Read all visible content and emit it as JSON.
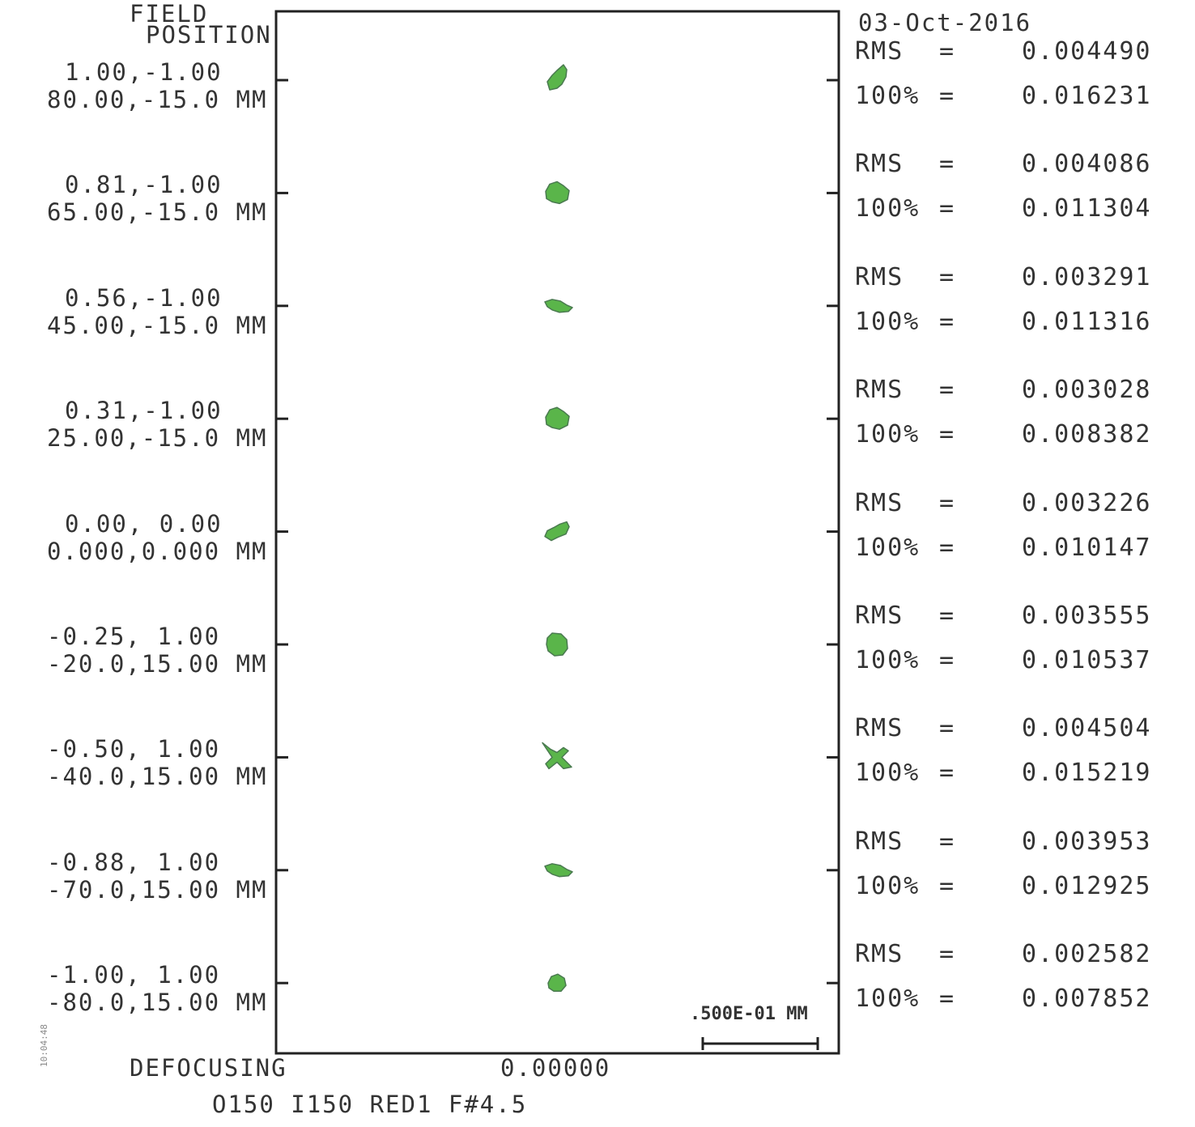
{
  "header": {
    "field_line1": "FIELD",
    "field_line2": "POSITION",
    "date": "03-Oct-2016"
  },
  "footer": {
    "defocusing_label": "DEFOCUSING",
    "defocus_value": "0.00000",
    "subtitle": "O150 I150 RED1 F#4.5",
    "side_mark": "10:04:48"
  },
  "scale_bar": {
    "label": ".500E-01 MM"
  },
  "chart_data": {
    "type": "scatter",
    "title": "",
    "xlabel": "DEFOCUSING",
    "ylabel": "FIELD POSITION",
    "spot_color": "#5ab54a",
    "spot_outline": "#4a7a50",
    "fields": [
      {
        "norm": "1.00,-1.00",
        "pos": "80.00,-15.0 MM",
        "rms_label": "RMS",
        "rms": "0.004490",
        "geo_label": "100%",
        "geo": "0.016231",
        "shape": "elongated"
      },
      {
        "norm": "0.81,-1.00",
        "pos": "65.00,-15.0 MM",
        "rms_label": "RMS",
        "rms": "0.004086",
        "geo_label": "100%",
        "geo": "0.011304",
        "shape": "blob"
      },
      {
        "norm": "0.56,-1.00",
        "pos": "45.00,-15.0 MM",
        "rms_label": "RMS",
        "rms": "0.003291",
        "geo_label": "100%",
        "geo": "0.011316",
        "shape": "flat"
      },
      {
        "norm": "0.31,-1.00",
        "pos": "25.00,-15.0 MM",
        "rms_label": "RMS",
        "rms": "0.003028",
        "geo_label": "100%",
        "geo": "0.008382",
        "shape": "blob"
      },
      {
        "norm": "0.00, 0.00",
        "pos": "0.000,0.000 MM",
        "rms_label": "RMS",
        "rms": "0.003226",
        "geo_label": "100%",
        "geo": "0.010147",
        "shape": "diag"
      },
      {
        "norm": "-0.25, 1.00",
        "pos": "-20.0,15.00 MM",
        "rms_label": "RMS",
        "rms": "0.003555",
        "geo_label": "100%",
        "geo": "0.010537",
        "shape": "tall"
      },
      {
        "norm": "-0.50, 1.00",
        "pos": "-40.0,15.00 MM",
        "rms_label": "RMS",
        "rms": "0.004504",
        "geo_label": "100%",
        "geo": "0.015219",
        "shape": "x"
      },
      {
        "norm": "-0.88, 1.00",
        "pos": "-70.0,15.00 MM",
        "rms_label": "RMS",
        "rms": "0.003953",
        "geo_label": "100%",
        "geo": "0.012925",
        "shape": "flat"
      },
      {
        "norm": "-1.00, 1.00",
        "pos": "-80.0,15.00 MM",
        "rms_label": "RMS",
        "rms": "0.002582",
        "geo_label": "100%",
        "geo": "0.007852",
        "shape": "small"
      }
    ]
  }
}
